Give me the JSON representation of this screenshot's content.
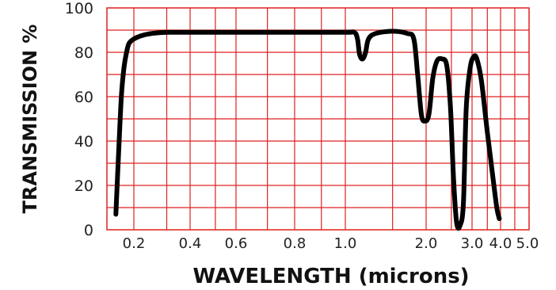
{
  "chart_data": {
    "type": "line",
    "title": "",
    "xlabel": "WAVELENGTH (microns)",
    "ylabel": "TRANSMISSION %",
    "x_scale": "log",
    "xlim": [
      0.16,
      5.0
    ],
    "ylim": [
      0,
      100
    ],
    "x_ticks": [
      "0.2",
      "0.4",
      "0.6",
      "0.8",
      "1.0",
      "2.0",
      "3.0",
      "4.0",
      "5.0"
    ],
    "y_ticks": [
      "0",
      "20",
      "40",
      "60",
      "80",
      "100"
    ],
    "grid": true,
    "colors": {
      "grid": "#e02020",
      "line": "#000000"
    },
    "series": [
      {
        "name": "",
        "points": [
          [
            0.165,
            7
          ],
          [
            0.17,
            35
          ],
          [
            0.175,
            60
          ],
          [
            0.18,
            73
          ],
          [
            0.185,
            80
          ],
          [
            0.19,
            84
          ],
          [
            0.2,
            86
          ],
          [
            0.22,
            87.5
          ],
          [
            0.25,
            88.5
          ],
          [
            0.3,
            89
          ],
          [
            0.4,
            89
          ],
          [
            0.6,
            89
          ],
          [
            0.8,
            89
          ],
          [
            1.0,
            89
          ],
          [
            1.08,
            89
          ],
          [
            1.11,
            86
          ],
          [
            1.13,
            79
          ],
          [
            1.16,
            77
          ],
          [
            1.19,
            80
          ],
          [
            1.22,
            86
          ],
          [
            1.3,
            88.5
          ],
          [
            1.5,
            89.5
          ],
          [
            1.7,
            88.5
          ],
          [
            1.8,
            86
          ],
          [
            1.86,
            70
          ],
          [
            1.92,
            52
          ],
          [
            1.98,
            49
          ],
          [
            2.05,
            52
          ],
          [
            2.12,
            68
          ],
          [
            2.2,
            76
          ],
          [
            2.3,
            77
          ],
          [
            2.4,
            74
          ],
          [
            2.48,
            55
          ],
          [
            2.55,
            22
          ],
          [
            2.62,
            3
          ],
          [
            2.7,
            2
          ],
          [
            2.78,
            12
          ],
          [
            2.85,
            55
          ],
          [
            2.95,
            73
          ],
          [
            3.05,
            78
          ],
          [
            3.15,
            77
          ],
          [
            3.3,
            67
          ],
          [
            3.5,
            44
          ],
          [
            3.7,
            24
          ],
          [
            3.85,
            10
          ],
          [
            3.95,
            5
          ]
        ]
      }
    ]
  }
}
